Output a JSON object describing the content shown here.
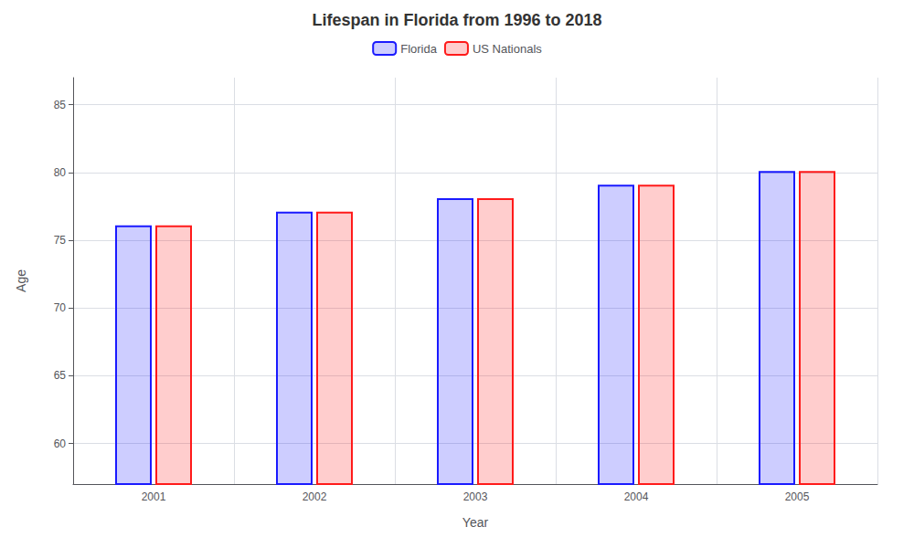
{
  "chart_data": {
    "type": "bar",
    "title": "Lifespan in Florida from 1996 to 2018",
    "xlabel": "Year",
    "ylabel": "Age",
    "categories": [
      "2001",
      "2002",
      "2003",
      "2004",
      "2005"
    ],
    "series": [
      {
        "name": "Florida",
        "color": "#1a1aff",
        "values": [
          76.1,
          77.1,
          78.1,
          79.1,
          80.1
        ]
      },
      {
        "name": "US Nationals",
        "color": "#ff1a1a",
        "values": [
          76.1,
          77.1,
          78.1,
          79.1,
          80.1
        ]
      }
    ],
    "ylim": [
      57,
      87
    ],
    "yticks": [
      60,
      65,
      70,
      75,
      80,
      85
    ],
    "grid": true,
    "legend": "top"
  }
}
